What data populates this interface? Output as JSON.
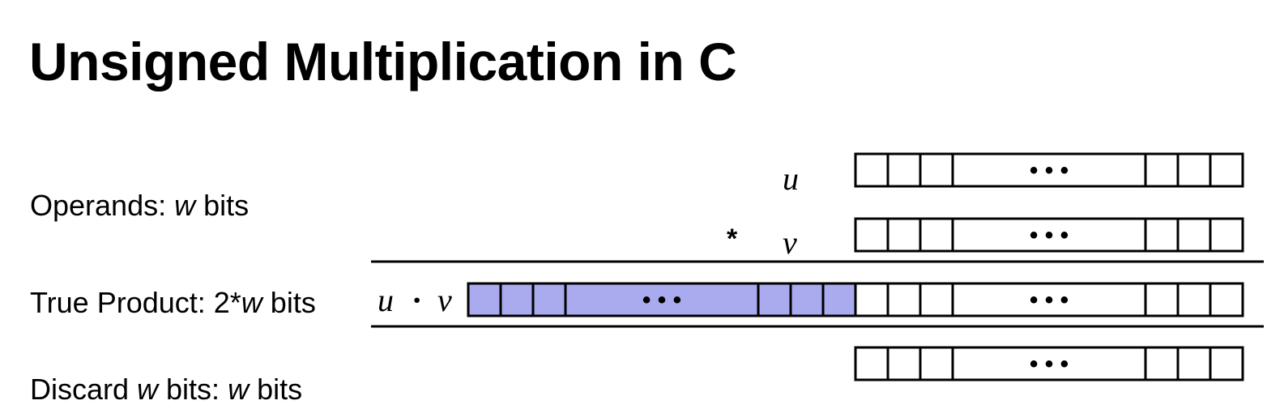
{
  "title": "Unsigned Multiplication in C",
  "rows": {
    "operands": {
      "label_prefix": "Operands: ",
      "label_var": "w",
      "label_suffix": " bits"
    },
    "true_product": {
      "label_prefix": "True Product: 2*",
      "label_var": "w",
      "label_suffix": "  bits"
    },
    "discard": {
      "label_prefix": "Discard ",
      "label_var": "w",
      "label_mid": " bits: ",
      "label_var2": "w",
      "label_suffix": " bits"
    }
  },
  "symbols": {
    "u": "u",
    "v": "v",
    "times": "*",
    "product_u": "u",
    "dot": "·",
    "product_v": "v"
  },
  "register": {
    "ellipsis": "• • •"
  },
  "colors": {
    "high_half_fill": "#aaaaee",
    "stroke": "#000000"
  }
}
